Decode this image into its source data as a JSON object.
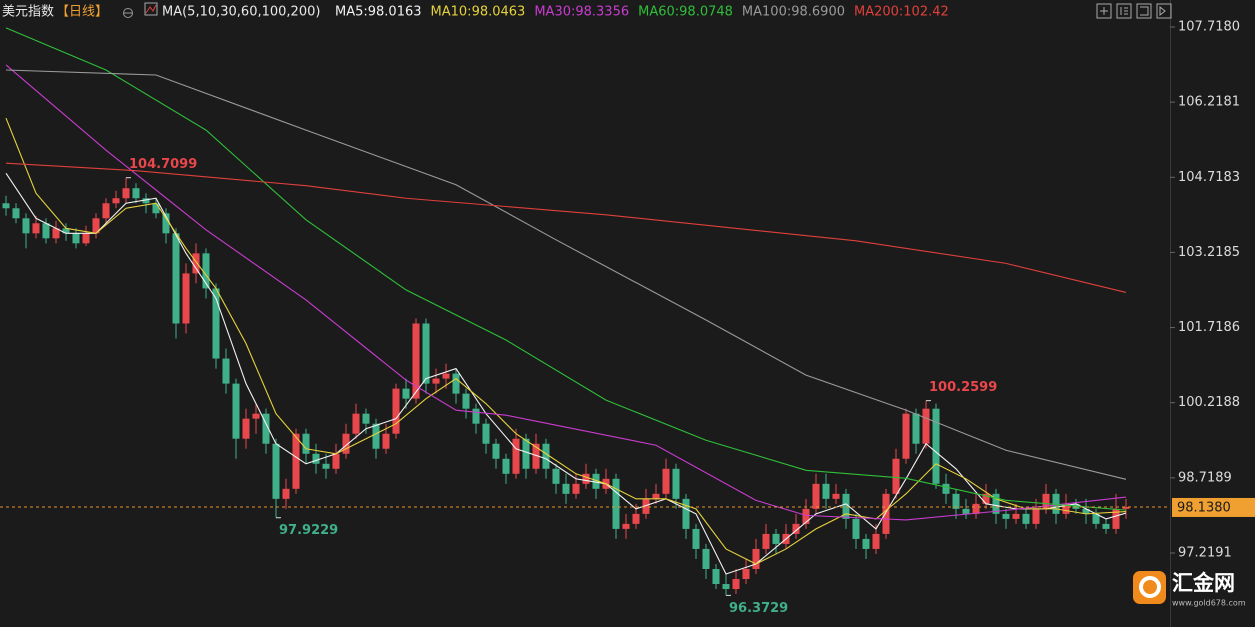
{
  "chart_data": {
    "type": "candlestick",
    "title": "美元指数",
    "period": "【日线】",
    "indicator": "MA(5,10,30,60,100,200)",
    "up_color": "#e8474c",
    "down_color": "#3fb088",
    "ylim": [
      95.742,
      108.257
    ],
    "yticks": [
      {
        "value": 107.718,
        "label": "107.7180"
      },
      106.2181,
      104.7183,
      103.2185,
      101.7186,
      100.2188,
      98.7189,
      97.2191
    ],
    "last_price": {
      "value": 98.138,
      "label": "98.1380"
    },
    "candles": [
      [
        104.2,
        104.35,
        103.95,
        104.1
      ],
      [
        104.1,
        104.2,
        103.8,
        103.9
      ],
      [
        103.9,
        104.0,
        103.3,
        103.6
      ],
      [
        103.6,
        103.95,
        103.5,
        103.8
      ],
      [
        103.8,
        103.9,
        103.4,
        103.5
      ],
      [
        103.5,
        103.85,
        103.4,
        103.7
      ],
      [
        103.7,
        103.8,
        103.45,
        103.6
      ],
      [
        103.6,
        103.7,
        103.3,
        103.4
      ],
      [
        103.4,
        103.75,
        103.35,
        103.6
      ],
      [
        103.6,
        104.0,
        103.5,
        103.9
      ],
      [
        103.9,
        104.3,
        103.8,
        104.2
      ],
      [
        104.2,
        104.45,
        104.1,
        104.3
      ],
      [
        104.3,
        104.7099,
        104.2,
        104.5
      ],
      [
        104.5,
        104.6,
        104.2,
        104.3
      ],
      [
        104.3,
        104.4,
        104.0,
        104.2
      ],
      [
        104.2,
        104.3,
        103.9,
        104.0
      ],
      [
        104.0,
        104.1,
        103.4,
        103.6
      ],
      [
        103.6,
        103.7,
        101.5,
        101.8
      ],
      [
        101.8,
        103.0,
        101.6,
        102.8
      ],
      [
        102.8,
        103.4,
        102.6,
        103.2
      ],
      [
        103.2,
        103.3,
        102.3,
        102.5
      ],
      [
        102.5,
        102.6,
        100.9,
        101.1
      ],
      [
        101.1,
        101.3,
        100.4,
        100.6
      ],
      [
        100.6,
        100.7,
        99.1,
        99.5
      ],
      [
        99.5,
        100.1,
        99.3,
        99.9
      ],
      [
        99.9,
        100.2,
        99.6,
        100.0
      ],
      [
        100.0,
        100.1,
        99.2,
        99.4
      ],
      [
        99.4,
        99.5,
        97.9229,
        98.3
      ],
      [
        98.3,
        98.7,
        98.1,
        98.5
      ],
      [
        98.5,
        99.7,
        98.4,
        99.6
      ],
      [
        99.6,
        99.7,
        99.0,
        99.2
      ],
      [
        99.2,
        99.4,
        98.8,
        99.0
      ],
      [
        99.0,
        99.2,
        98.7,
        98.9
      ],
      [
        98.9,
        99.4,
        98.8,
        99.2
      ],
      [
        99.2,
        99.8,
        99.1,
        99.6
      ],
      [
        99.6,
        100.2,
        99.5,
        100.0
      ],
      [
        100.0,
        100.1,
        99.6,
        99.8
      ],
      [
        99.8,
        99.9,
        99.1,
        99.3
      ],
      [
        99.3,
        99.8,
        99.2,
        99.6
      ],
      [
        99.6,
        100.6,
        99.5,
        100.5
      ],
      [
        100.5,
        100.7,
        100.1,
        100.3
      ],
      [
        100.3,
        101.9,
        100.2,
        101.8
      ],
      [
        101.8,
        101.9,
        100.4,
        100.6
      ],
      [
        100.6,
        100.9,
        100.4,
        100.7
      ],
      [
        100.7,
        101.0,
        100.5,
        100.8
      ],
      [
        100.8,
        100.9,
        100.2,
        100.4
      ],
      [
        100.4,
        100.5,
        99.9,
        100.1
      ],
      [
        100.1,
        100.2,
        99.6,
        99.8
      ],
      [
        99.8,
        99.9,
        99.2,
        99.4
      ],
      [
        99.4,
        99.5,
        98.9,
        99.1
      ],
      [
        99.1,
        99.2,
        98.6,
        98.8
      ],
      [
        98.8,
        99.7,
        98.7,
        99.5
      ],
      [
        99.5,
        99.6,
        98.7,
        98.9
      ],
      [
        98.9,
        99.6,
        98.8,
        99.4
      ],
      [
        99.4,
        99.5,
        98.7,
        98.9
      ],
      [
        98.9,
        99.0,
        98.4,
        98.6
      ],
      [
        98.6,
        98.8,
        98.2,
        98.4
      ],
      [
        98.4,
        98.8,
        98.3,
        98.6
      ],
      [
        98.6,
        99.0,
        98.5,
        98.8
      ],
      [
        98.8,
        98.9,
        98.3,
        98.5
      ],
      [
        98.5,
        98.9,
        98.4,
        98.7
      ],
      [
        98.7,
        98.8,
        97.5,
        97.7
      ],
      [
        97.7,
        98.0,
        97.5,
        97.8
      ],
      [
        97.8,
        98.2,
        97.7,
        98.0
      ],
      [
        98.0,
        98.5,
        97.9,
        98.3
      ],
      [
        98.3,
        98.6,
        98.2,
        98.4
      ],
      [
        98.4,
        99.1,
        98.3,
        98.9
      ],
      [
        98.9,
        99.0,
        98.1,
        98.3
      ],
      [
        98.3,
        98.4,
        97.5,
        97.7
      ],
      [
        97.7,
        97.8,
        97.1,
        97.3
      ],
      [
        97.3,
        97.4,
        96.7,
        96.9
      ],
      [
        96.9,
        97.0,
        96.5,
        96.6
      ],
      [
        96.6,
        96.8,
        96.3729,
        96.5
      ],
      [
        96.5,
        96.9,
        96.4,
        96.7
      ],
      [
        96.7,
        97.1,
        96.6,
        96.9
      ],
      [
        96.9,
        97.5,
        96.8,
        97.3
      ],
      [
        97.3,
        97.8,
        97.2,
        97.6
      ],
      [
        97.6,
        97.7,
        97.2,
        97.4
      ],
      [
        97.4,
        97.8,
        97.3,
        97.6
      ],
      [
        97.6,
        98.0,
        97.5,
        97.8
      ],
      [
        97.8,
        98.3,
        97.7,
        98.1
      ],
      [
        98.1,
        98.8,
        98.0,
        98.6
      ],
      [
        98.6,
        98.8,
        98.1,
        98.3
      ],
      [
        98.3,
        98.6,
        98.2,
        98.4
      ],
      [
        98.4,
        98.5,
        97.7,
        97.9
      ],
      [
        97.9,
        98.0,
        97.3,
        97.5
      ],
      [
        97.5,
        97.6,
        97.1,
        97.3
      ],
      [
        97.3,
        97.8,
        97.2,
        97.6
      ],
      [
        97.6,
        98.5,
        97.5,
        98.4
      ],
      [
        98.4,
        99.3,
        98.3,
        99.1
      ],
      [
        99.1,
        100.1,
        99.0,
        100.0
      ],
      [
        100.0,
        100.1,
        99.2,
        99.4
      ],
      [
        99.4,
        100.2599,
        99.3,
        100.1
      ],
      [
        100.1,
        100.2,
        98.5,
        98.6
      ],
      [
        98.6,
        98.8,
        98.2,
        98.4
      ],
      [
        98.4,
        98.5,
        97.9,
        98.1
      ],
      [
        98.1,
        98.3,
        97.9,
        98.0
      ],
      [
        98.0,
        98.4,
        97.9,
        98.2
      ],
      [
        98.2,
        98.6,
        98.1,
        98.4
      ],
      [
        98.4,
        98.5,
        97.8,
        98.0
      ],
      [
        98.0,
        98.1,
        97.7,
        97.9
      ],
      [
        97.9,
        98.2,
        97.8,
        98.0
      ],
      [
        98.0,
        98.1,
        97.7,
        97.8
      ],
      [
        97.8,
        98.3,
        97.7,
        98.1
      ],
      [
        98.1,
        98.6,
        98.0,
        98.4
      ],
      [
        98.4,
        98.5,
        97.8,
        98.0
      ],
      [
        98.0,
        98.4,
        97.9,
        98.2
      ],
      [
        98.2,
        98.3,
        98.0,
        98.1
      ],
      [
        98.1,
        98.3,
        97.8,
        98.0
      ],
      [
        98.0,
        98.1,
        97.7,
        97.8
      ],
      [
        97.8,
        97.9,
        97.6,
        97.7
      ],
      [
        97.7,
        98.4,
        97.6,
        98.1
      ],
      [
        98.1,
        98.3,
        97.9,
        98.138
      ]
    ],
    "series": [
      {
        "name": "MA5:98.0163",
        "color": "#f2f2f2",
        "x": [
          0,
          3,
          6,
          9,
          12,
          15,
          18,
          21,
          24,
          27,
          30,
          33,
          36,
          39,
          42,
          45,
          48,
          51,
          54,
          57,
          60,
          63,
          66,
          69,
          72,
          75,
          78,
          81,
          84,
          87,
          90,
          92,
          95,
          98,
          101,
          104,
          107,
          110,
          112
        ],
        "values": [
          104.8,
          103.9,
          103.6,
          103.6,
          104.2,
          104.3,
          103.2,
          102.3,
          100.6,
          99.4,
          99.0,
          99.2,
          99.7,
          99.9,
          100.7,
          100.9,
          100.0,
          99.3,
          99.1,
          98.7,
          98.6,
          98.1,
          98.3,
          98.0,
          96.8,
          97.0,
          97.5,
          98.0,
          98.2,
          97.7,
          98.7,
          99.4,
          98.9,
          98.2,
          98.1,
          98.1,
          98.2,
          97.9,
          98.0163
        ]
      },
      {
        "name": "MA10:98.0463",
        "color": "#e6d23c",
        "x": [
          0,
          3,
          6,
          9,
          12,
          15,
          18,
          21,
          24,
          27,
          30,
          33,
          36,
          39,
          42,
          45,
          48,
          51,
          54,
          57,
          60,
          63,
          66,
          69,
          72,
          75,
          78,
          81,
          84,
          87,
          90,
          93,
          96,
          99,
          102,
          105,
          108,
          112
        ],
        "values": [
          105.9,
          104.4,
          103.7,
          103.6,
          104.1,
          104.2,
          103.3,
          102.5,
          101.4,
          100.0,
          99.3,
          99.2,
          99.5,
          99.8,
          100.3,
          100.7,
          100.2,
          99.6,
          99.2,
          98.8,
          98.6,
          98.3,
          98.3,
          98.1,
          97.3,
          97.0,
          97.3,
          97.7,
          98.0,
          97.9,
          98.4,
          99.0,
          98.7,
          98.3,
          98.1,
          98.1,
          98.0,
          98.0463
        ]
      },
      {
        "name": "MA30:98.3356",
        "color": "#c93cd0",
        "x": [
          0,
          10,
          20,
          30,
          40,
          45,
          50,
          55,
          65,
          75,
          80,
          90,
          100,
          112
        ],
        "values": [
          106.96,
          105.26,
          103.67,
          102.27,
          100.67,
          100.07,
          99.97,
          99.77,
          99.37,
          98.27,
          97.97,
          97.88,
          98.07,
          98.3356
        ]
      },
      {
        "name": "MA60:98.0748",
        "color": "#2fbf3a",
        "x": [
          0,
          10,
          20,
          30,
          40,
          50,
          60,
          70,
          80,
          90,
          100,
          112
        ],
        "values": [
          107.7,
          106.86,
          105.66,
          103.87,
          102.47,
          101.47,
          100.27,
          99.47,
          98.87,
          98.71,
          98.27,
          98.0748
        ]
      },
      {
        "name": "MA100:98.6900",
        "color": "#9a9a9a",
        "x": [
          0,
          15,
          30,
          45,
          55,
          70,
          80,
          90,
          100,
          112
        ],
        "values": [
          106.86,
          106.76,
          105.66,
          104.57,
          103.47,
          101.87,
          100.77,
          100.07,
          99.27,
          98.69
        ]
      },
      {
        "name": "MA200:102.42",
        "color": "#e0403c",
        "x": [
          0,
          13,
          30,
          40,
          60,
          85,
          100,
          112
        ],
        "values": [
          105.0,
          104.85,
          104.55,
          104.3,
          103.97,
          103.45,
          103.0,
          102.42
        ]
      }
    ],
    "brand": "汇金网",
    "brand_url": "www.gold678.com"
  }
}
